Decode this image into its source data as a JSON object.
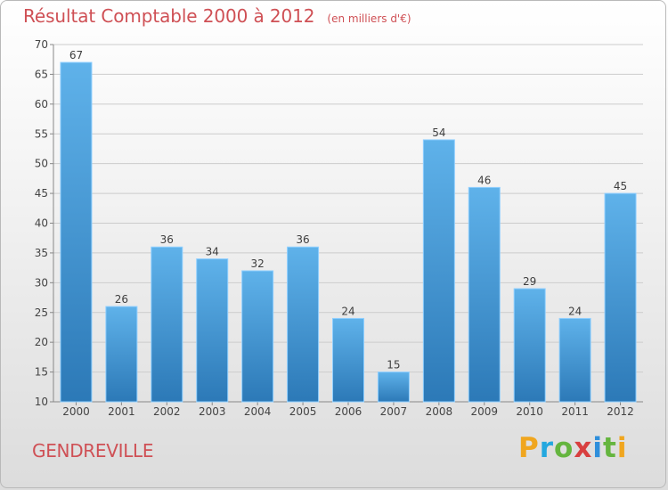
{
  "header": {
    "title": "Résultat Comptable 2000 à 2012",
    "subtitle": "(en milliers d'€)"
  },
  "footer": {
    "place_name": "GENDREVILLE"
  },
  "logo": {
    "text": "Proxiti"
  },
  "colors": {
    "accent": "#cf5055",
    "bar_light": "#5dafe9",
    "bar_dark": "#2f7fbe",
    "grid": "#cccccc",
    "axis": "#888888"
  },
  "chart_data": {
    "type": "bar",
    "title": "Résultat Comptable 2000 à 2012",
    "subtitle": "(en milliers d'€)",
    "categories": [
      "2000",
      "2001",
      "2002",
      "2003",
      "2004",
      "2005",
      "2006",
      "2007",
      "2008",
      "2009",
      "2010",
      "2011",
      "2012"
    ],
    "values": [
      67,
      26,
      36,
      34,
      32,
      36,
      24,
      15,
      54,
      46,
      29,
      24,
      45
    ],
    "xlabel": "",
    "ylabel": "",
    "ylim": [
      10,
      70
    ],
    "yticks": [
      10,
      15,
      20,
      25,
      30,
      35,
      40,
      45,
      50,
      55,
      60,
      65,
      70
    ],
    "grid": true
  }
}
